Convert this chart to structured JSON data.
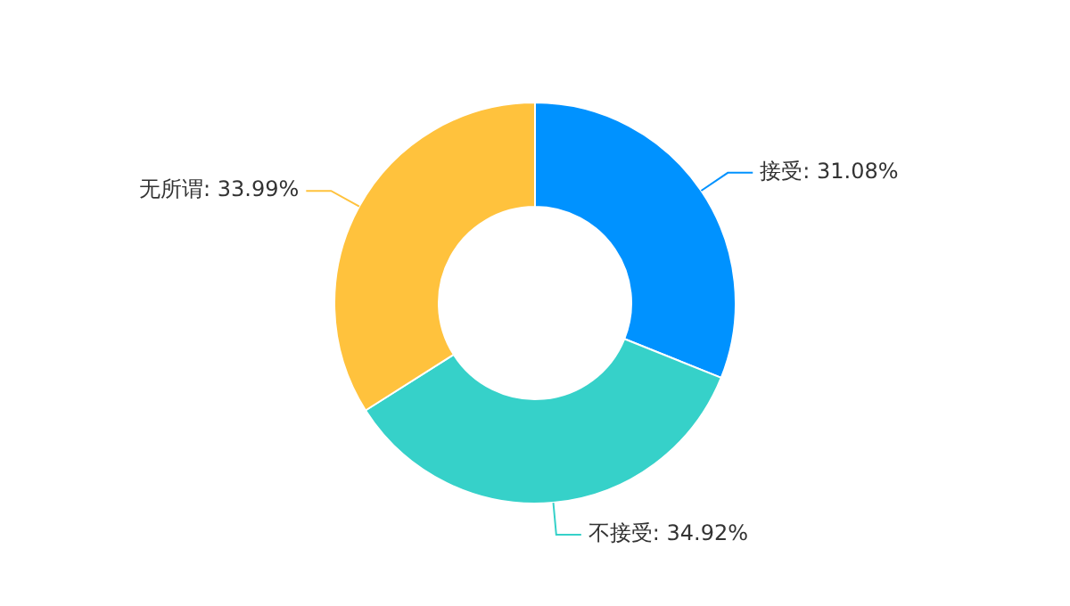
{
  "chart_data": {
    "type": "donut",
    "categories": [
      "接受",
      "不接受",
      "无所谓"
    ],
    "values": [
      31.08,
      34.92,
      33.99
    ],
    "value_labels": [
      "31.08%",
      "34.92%",
      "33.99%"
    ],
    "colors": [
      "#0092ff",
      "#36d1c9",
      "#ffc23d"
    ],
    "legend": false
  }
}
